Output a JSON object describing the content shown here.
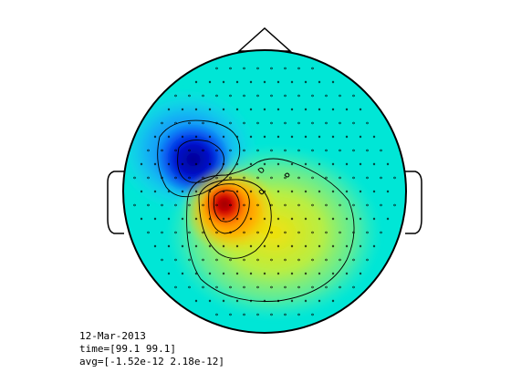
{
  "info": {
    "date": "12-Mar-2013",
    "time": "time=[99.1 99.1]",
    "avg": "avg=[-1.52e-12 2.18e-12]"
  },
  "colormap": "jet",
  "background_color": "#00e6d6",
  "sources": [
    {
      "label": "negative",
      "polarity": -1,
      "peak_color": "#000099"
    },
    {
      "label": "positive",
      "polarity": 1,
      "peak_color": "#990000"
    }
  ]
}
